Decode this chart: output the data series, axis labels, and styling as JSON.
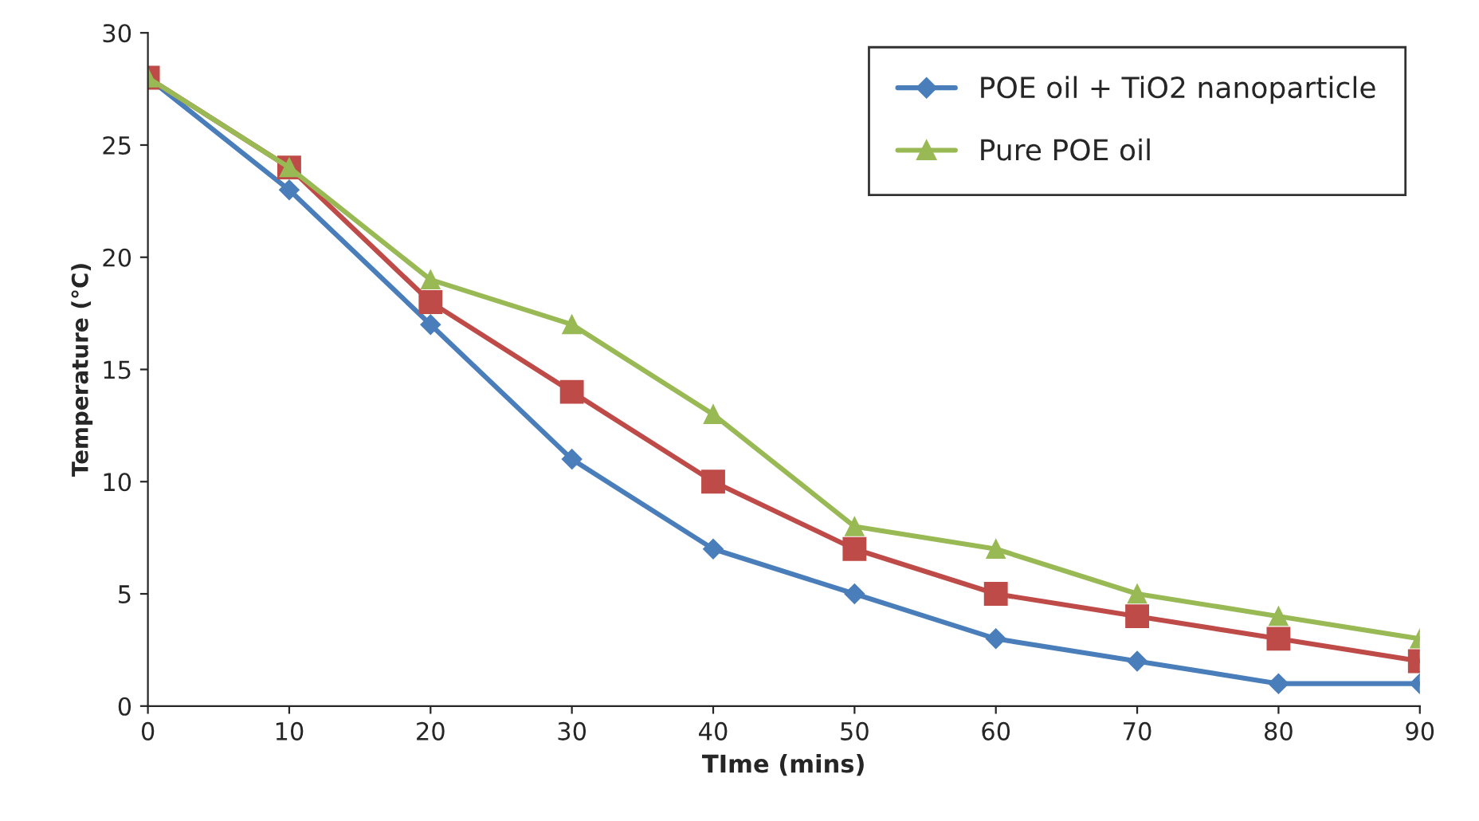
{
  "chart_data": {
    "type": "line",
    "xlabel": "TIme (mins)",
    "ylabel": "Temperature (°C)",
    "x": [
      0,
      10,
      20,
      30,
      40,
      50,
      60,
      70,
      80,
      90
    ],
    "series": [
      {
        "name": "POE oil + TiO2 nanoparticle",
        "color": "#4a7ebb",
        "marker": "diamond",
        "values": [
          28,
          23,
          17,
          11,
          7,
          5,
          3,
          2,
          1,
          1
        ]
      },
      {
        "color": "#be4b48",
        "marker": "square",
        "values": [
          28,
          24,
          18,
          14,
          10,
          7,
          5,
          4,
          3,
          2
        ]
      },
      {
        "name": "Pure POE oil",
        "color": "#98b954",
        "marker": "triangle",
        "values": [
          28,
          24,
          19,
          17,
          13,
          8,
          7,
          5,
          4,
          3
        ]
      }
    ],
    "xlim": [
      0,
      90
    ],
    "xticks": [
      0,
      10,
      20,
      30,
      40,
      50,
      60,
      70,
      80,
      90
    ],
    "ylim": [
      0,
      30
    ],
    "yticks": [
      0,
      5,
      10,
      15,
      20,
      25,
      30
    ],
    "grid": false,
    "legend": "top right",
    "line_style": "solid"
  }
}
